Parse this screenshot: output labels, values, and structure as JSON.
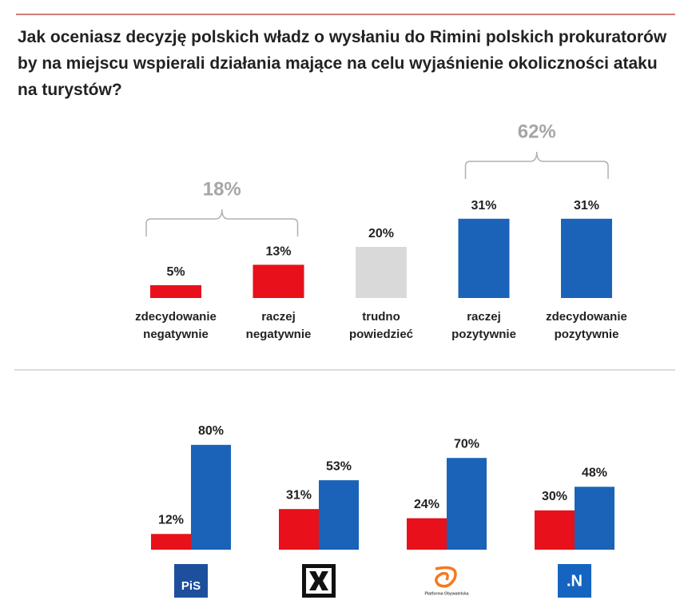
{
  "chart_data": [
    {
      "type": "bar",
      "title": "Jak oceniasz decyzję polskich władz o wysłaniu do Rimini polskich prokuratorów by na miejscu wspierali działania mające na celu wyjaśnienie okoliczności ataku na turystów?",
      "categories": [
        "zdecydowanie negatywnie",
        "raczej negatywnie",
        "trudno powiedzieć",
        "raczej pozytywnie",
        "zdecydowanie pozytywnie"
      ],
      "values": [
        5,
        13,
        20,
        31,
        31
      ],
      "value_labels": [
        "5%",
        "13%",
        "20%",
        "31%",
        "31%"
      ],
      "colors": [
        "#e8101a",
        "#e8101a",
        "#d9d9d9",
        "#1a63b8",
        "#1a63b8"
      ],
      "annotations": [
        {
          "value": 18,
          "label": "18%"
        },
        {
          "value": 62,
          "label": "62%"
        }
      ]
    },
    {
      "type": "grouped-bar",
      "categories": [
        "PiS",
        null,
        "Platforma Obywatelska",
        ".N"
      ],
      "series": [
        {
          "color": "#e8101a",
          "values": [
            12,
            31,
            24,
            30
          ],
          "value_labels": [
            "12%",
            "31%",
            "24%",
            "30%"
          ]
        },
        {
          "color": "#1a63b8",
          "values": [
            80,
            53,
            70,
            48
          ],
          "value_labels": [
            "80%",
            "53%",
            "70%",
            "48%"
          ]
        }
      ]
    }
  ]
}
